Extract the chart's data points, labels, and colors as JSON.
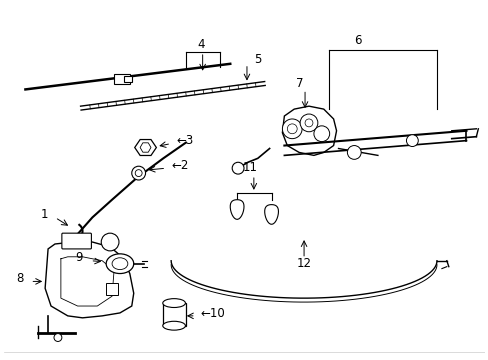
{
  "bg_color": "#ffffff",
  "fig_width": 4.89,
  "fig_height": 3.6,
  "dpi": 100,
  "label_fontsize": 8.5
}
